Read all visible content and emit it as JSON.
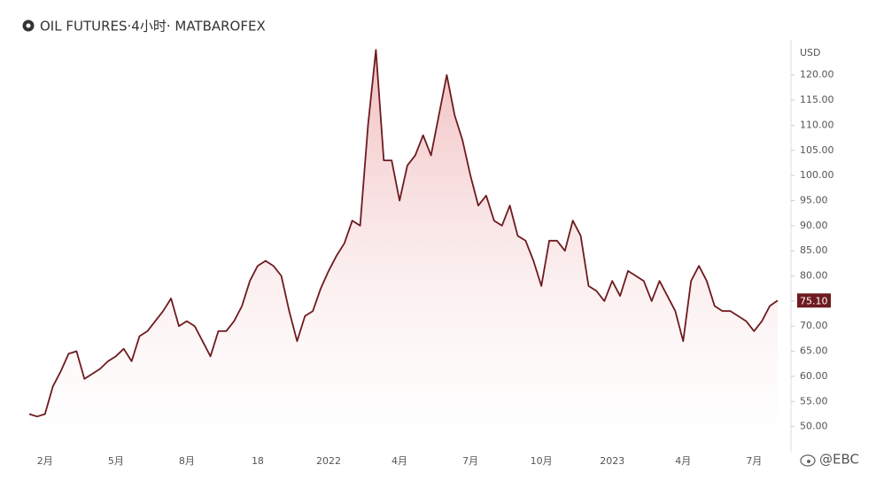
{
  "chart_data": {
    "type": "line",
    "title": "OIL FUTURES·4小时· MATBAROFEX",
    "y_axis_label": "USD",
    "watermark": "@EBC",
    "color": "#6e1a1f",
    "fill": true,
    "price_label": "75.10",
    "categories": [
      null,
      null,
      "2月",
      null,
      null,
      null,
      null,
      null,
      null,
      null,
      null,
      "5月",
      null,
      null,
      null,
      null,
      null,
      null,
      null,
      null,
      "8月",
      null,
      null,
      null,
      null,
      null,
      null,
      null,
      null,
      "18",
      null,
      null,
      null,
      null,
      null,
      null,
      null,
      null,
      "2022",
      null,
      null,
      null,
      null,
      null,
      null,
      null,
      null,
      "4月",
      null,
      null,
      null,
      null,
      null,
      null,
      null,
      null,
      "7月",
      null,
      null,
      null,
      null,
      null,
      null,
      null,
      null,
      "10月",
      null,
      null,
      null,
      null,
      null,
      null,
      null,
      null,
      "2023",
      null,
      null,
      null,
      null,
      null,
      null,
      null,
      null,
      "4月",
      null,
      null,
      null,
      null,
      null,
      null,
      null,
      null,
      "7月",
      null,
      null,
      null
    ],
    "values": [
      52.5,
      52,
      52.5,
      58,
      61,
      64.5,
      65,
      59.5,
      60.5,
      61.5,
      63,
      64,
      65.5,
      63,
      68,
      69,
      71,
      73,
      75.5,
      70,
      71,
      70,
      67,
      64,
      69,
      69,
      71,
      74,
      79,
      82,
      83,
      82,
      80,
      73,
      67,
      72,
      73,
      77.5,
      81,
      84,
      86.5,
      91,
      90,
      110,
      125,
      103,
      103,
      95,
      102,
      104,
      108,
      104,
      112,
      120,
      112,
      107,
      100,
      94,
      96,
      91,
      90,
      94,
      88,
      87,
      83,
      78,
      87,
      87,
      85,
      91,
      88,
      78,
      77,
      75,
      79,
      76,
      81,
      80,
      79,
      75,
      79,
      76,
      73,
      67,
      79,
      82,
      79,
      74,
      73,
      73,
      72,
      71,
      69,
      71,
      74,
      75.1
    ],
    "ylim": [
      45,
      127
    ],
    "yticks": [
      {
        "value": 50,
        "label": "50.00"
      },
      {
        "value": 55,
        "label": "55.00"
      },
      {
        "value": 60,
        "label": "60.00"
      },
      {
        "value": 65,
        "label": "65.00"
      },
      {
        "value": 70,
        "label": "70.00"
      },
      {
        "value": 75,
        "label": "75.00"
      },
      {
        "value": 80,
        "label": "80.00"
      },
      {
        "value": 85,
        "label": "85.00"
      },
      {
        "value": 90,
        "label": "90.00"
      },
      {
        "value": 95,
        "label": "95.00"
      },
      {
        "value": 100,
        "label": "100.00"
      },
      {
        "value": 105,
        "label": "105.00"
      },
      {
        "value": 110,
        "label": "110.00"
      },
      {
        "value": 115,
        "label": "115.00"
      },
      {
        "value": 120,
        "label": "120.00"
      }
    ],
    "grid": false
  }
}
